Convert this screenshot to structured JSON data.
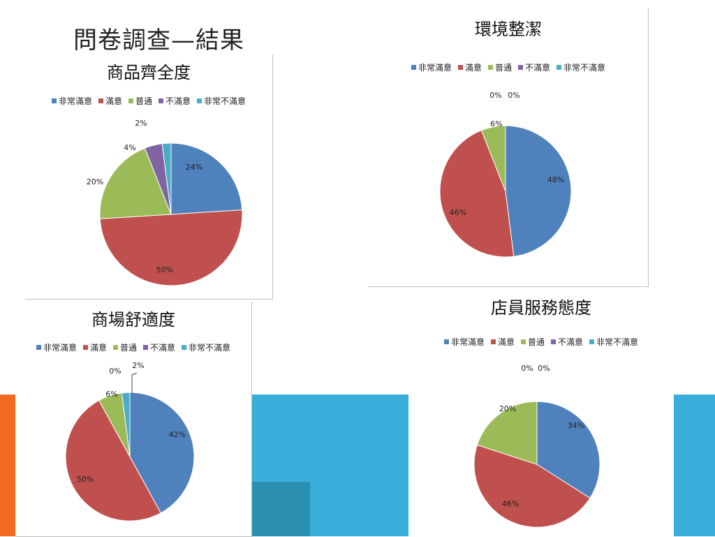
{
  "page_title": "問卷調查—結果",
  "chart_data": [
    {
      "type": "pie",
      "title": "商品齊全度",
      "categories": [
        "非常滿意",
        "滿意",
        "普通",
        "不滿意",
        "非常不滿意"
      ],
      "values": [
        24,
        50,
        20,
        4,
        2
      ],
      "labels": [
        "24%",
        "50%",
        "20%",
        "4%",
        "2%"
      ],
      "colors": [
        "#4f81bd",
        "#c0504d",
        "#9bbb59",
        "#8064a2",
        "#4bacc6"
      ],
      "legend_position": "top"
    },
    {
      "type": "pie",
      "title": "環境整潔",
      "categories": [
        "非常滿意",
        "滿意",
        "普通",
        "不滿意",
        "非常不滿意"
      ],
      "values": [
        48,
        46,
        6,
        0,
        0
      ],
      "labels": [
        "48%",
        "46%",
        "6%",
        "0%",
        "0%"
      ],
      "colors": [
        "#4f81bd",
        "#c0504d",
        "#9bbb59",
        "#8064a2",
        "#4bacc6"
      ],
      "legend_position": "top"
    },
    {
      "type": "pie",
      "title": "商場舒適度",
      "categories": [
        "非常滿意",
        "滿意",
        "普通",
        "不滿意",
        "非常不滿意"
      ],
      "values": [
        42,
        50,
        6,
        0,
        2
      ],
      "labels": [
        "42%",
        "50%",
        "6%",
        "0%",
        "2%"
      ],
      "colors": [
        "#4f81bd",
        "#c0504d",
        "#9bbb59",
        "#8064a2",
        "#4bacc6"
      ],
      "legend_position": "top"
    },
    {
      "type": "pie",
      "title": "店員服務態度",
      "categories": [
        "非常滿意",
        "滿意",
        "普通",
        "不滿意",
        "非常不滿意"
      ],
      "values": [
        34,
        46,
        20,
        0,
        0
      ],
      "labels": [
        "34%",
        "46%",
        "20%",
        "0%",
        "0%"
      ],
      "colors": [
        "#4f81bd",
        "#c0504d",
        "#9bbb59",
        "#8064a2",
        "#4bacc6"
      ],
      "legend_position": "top"
    }
  ]
}
